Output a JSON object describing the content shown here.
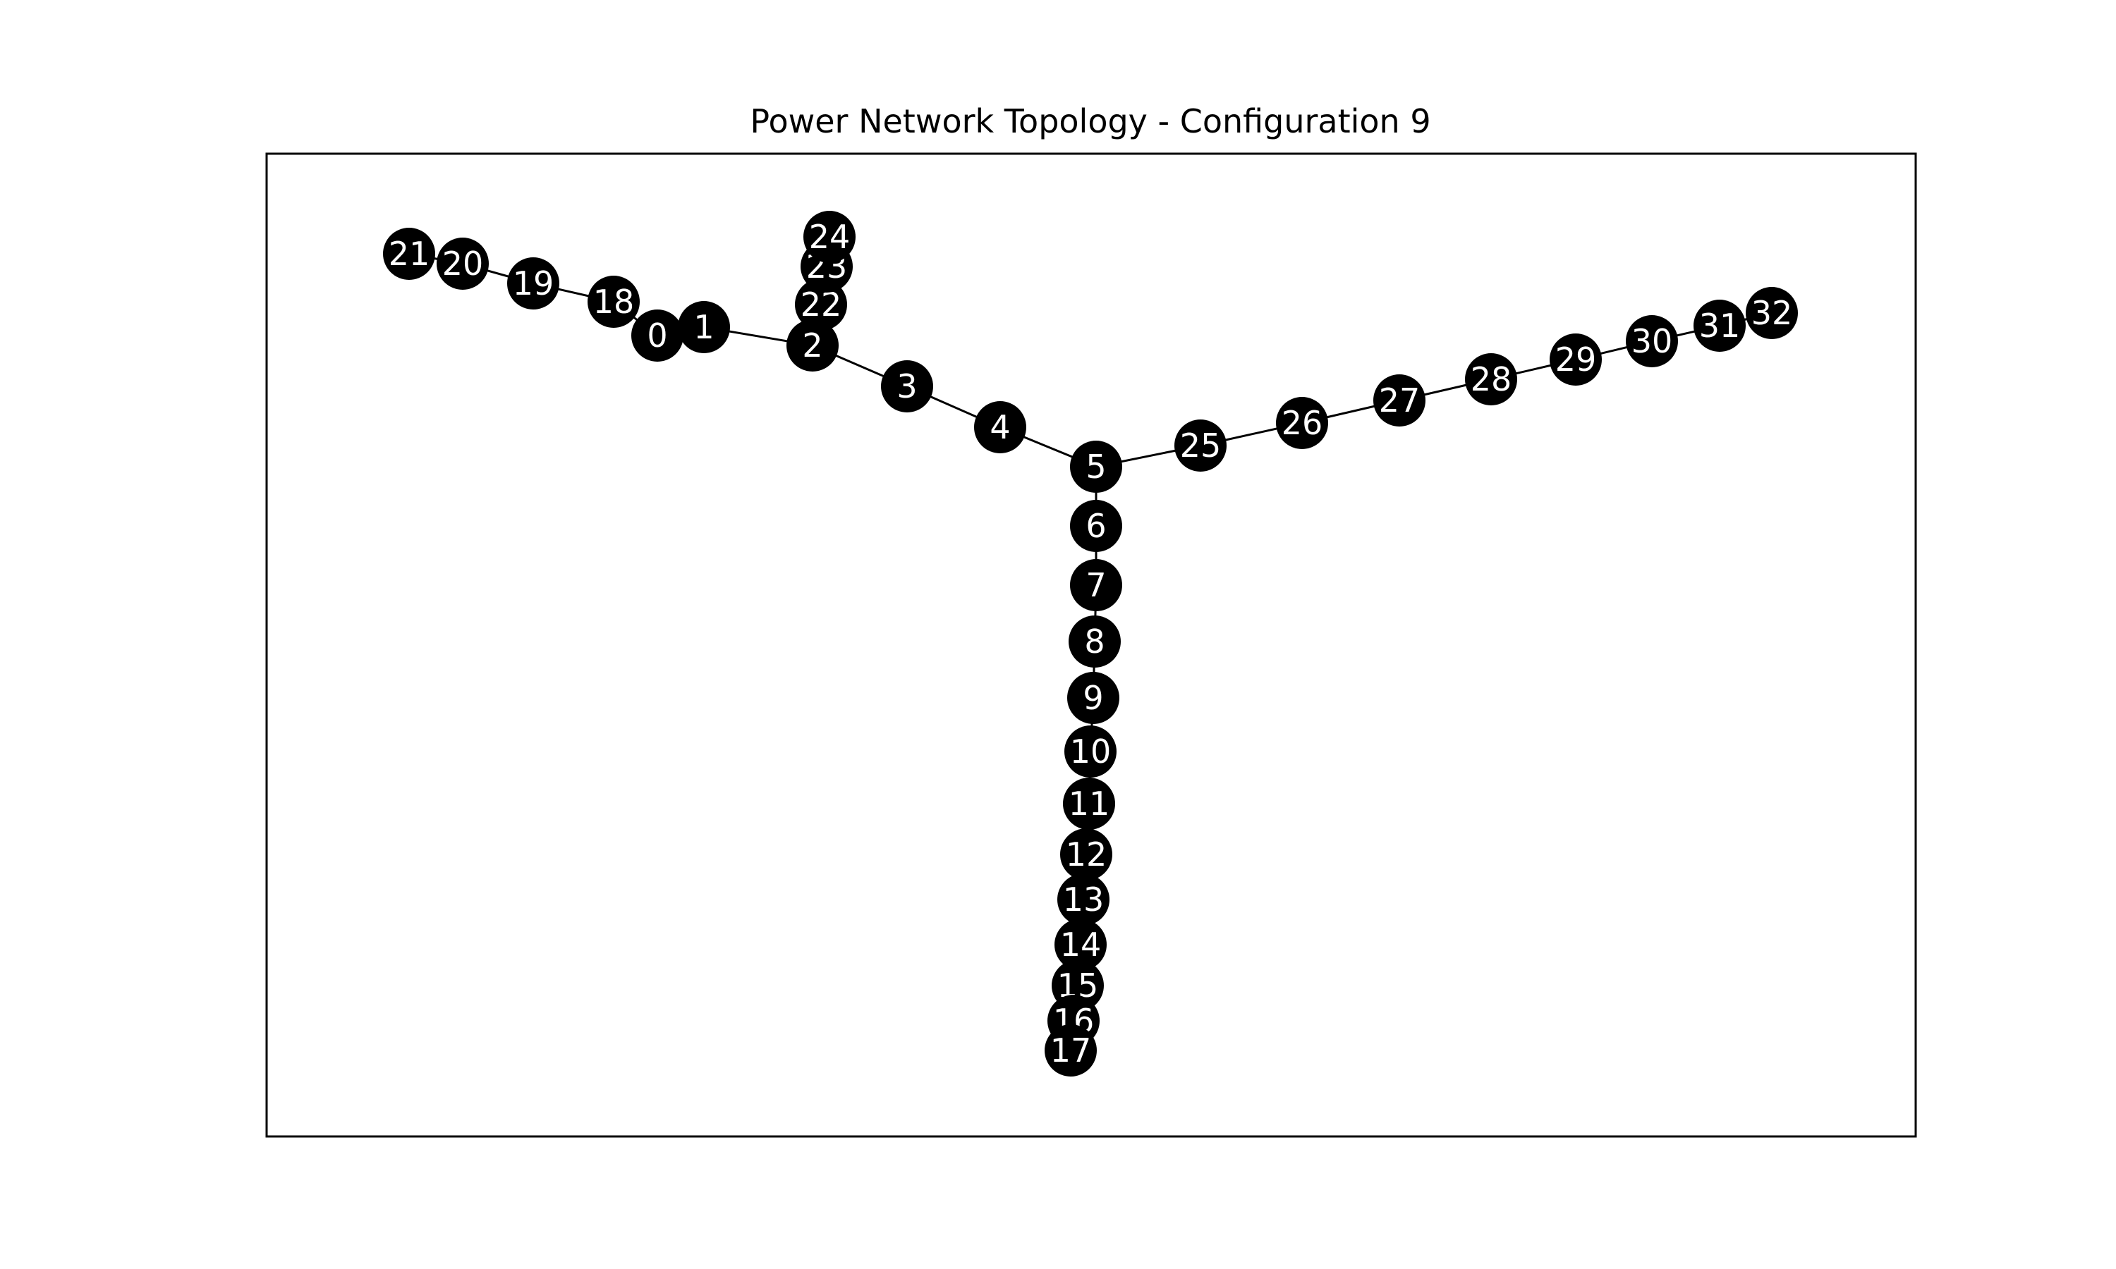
{
  "title": "Power Network Topology - Configuration 9",
  "colors": {
    "node_fill": "#000000",
    "node_label": "#ffffff",
    "edge": "#000000",
    "frame": "#000000",
    "background": "#ffffff"
  },
  "nodes": [
    "0",
    "1",
    "2",
    "3",
    "4",
    "5",
    "6",
    "7",
    "8",
    "9",
    "10",
    "11",
    "12",
    "13",
    "14",
    "15",
    "16",
    "17",
    "18",
    "19",
    "20",
    "21",
    "22",
    "23",
    "24",
    "25",
    "26",
    "27",
    "28",
    "29",
    "30",
    "31",
    "32"
  ],
  "edges": [
    [
      "0",
      "1"
    ],
    [
      "1",
      "2"
    ],
    [
      "2",
      "3"
    ],
    [
      "3",
      "4"
    ],
    [
      "4",
      "5"
    ],
    [
      "5",
      "6"
    ],
    [
      "6",
      "7"
    ],
    [
      "7",
      "8"
    ],
    [
      "8",
      "9"
    ],
    [
      "9",
      "10"
    ],
    [
      "10",
      "11"
    ],
    [
      "11",
      "12"
    ],
    [
      "12",
      "13"
    ],
    [
      "13",
      "14"
    ],
    [
      "14",
      "15"
    ],
    [
      "15",
      "16"
    ],
    [
      "16",
      "17"
    ],
    [
      "0",
      "18"
    ],
    [
      "18",
      "19"
    ],
    [
      "19",
      "20"
    ],
    [
      "20",
      "21"
    ],
    [
      "2",
      "22"
    ],
    [
      "22",
      "23"
    ],
    [
      "23",
      "24"
    ],
    [
      "5",
      "25"
    ],
    [
      "25",
      "26"
    ],
    [
      "26",
      "27"
    ],
    [
      "27",
      "28"
    ],
    [
      "28",
      "29"
    ],
    [
      "29",
      "30"
    ],
    [
      "30",
      "31"
    ],
    [
      "31",
      "32"
    ]
  ]
}
